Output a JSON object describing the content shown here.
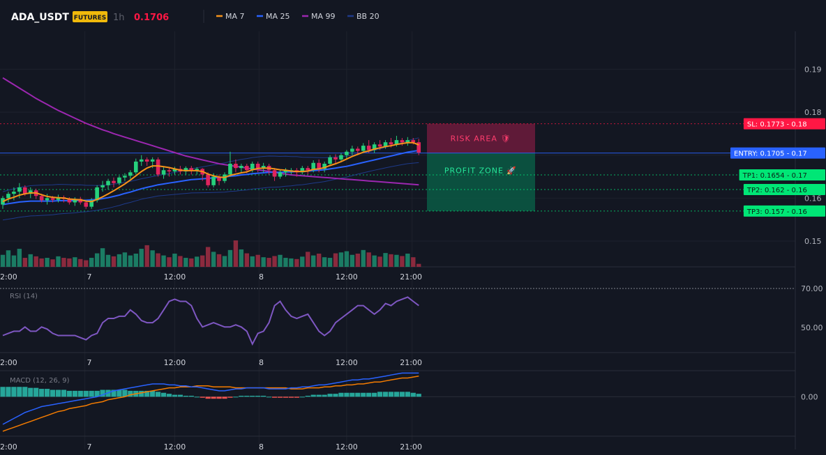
{
  "header": {
    "symbol": "ADA_USDT",
    "badge": "FUTURES",
    "interval": "1h",
    "price": "0.1706",
    "indicators": [
      {
        "label": "MA 7",
        "color": "#f7931a"
      },
      {
        "label": "MA 25",
        "color": "#2962ff"
      },
      {
        "label": "MA 99",
        "color": "#9c27b0"
      },
      {
        "label": "BB 20",
        "color": "#1e3a8a"
      }
    ]
  },
  "colors": {
    "up": "#26d07c",
    "down": "#e0245e",
    "vol_up": "#1b7c64",
    "vol_down": "#8b2a3e",
    "ma7": "#f7931a",
    "ma25": "#2962ff",
    "ma99": "#9c27b0",
    "bb": "#1e3a8a",
    "rsi": "#7e57c2",
    "macd": "#2962ff",
    "signal": "#f57c00",
    "sl": "#ff1744",
    "entry": "#2962ff",
    "tp": "#00e676"
  },
  "zones": {
    "risk_label": "RISK AREA 🛡",
    "profit_label": "PROFIT ZONE 🚀"
  },
  "levels": [
    {
      "key": "sl",
      "label": "SL: 0.1773",
      "value": 0.1773,
      "axis": "0.18"
    },
    {
      "key": "entry",
      "label": "ENTRY: 0.1705",
      "value": 0.1705,
      "axis": "0.17"
    },
    {
      "key": "tp1",
      "label": "TP1: 0.1654",
      "value": 0.1654,
      "axis": "0.17"
    },
    {
      "key": "tp2",
      "label": "TP2: 0.162",
      "value": 0.162,
      "axis": "0.16"
    },
    {
      "key": "tp3",
      "label": "TP3: 0.157",
      "value": 0.157,
      "axis": "0.16"
    }
  ],
  "x_ticks": [
    "2:00",
    "7",
    "12:00",
    "8",
    "12:00",
    "21:00"
  ],
  "chart_data": [
    {
      "type": "candlestick",
      "title": "ADA_USDT 1h",
      "y_ticks": [
        "0.19",
        "0.18",
        "0.17",
        "0.16",
        "0.15"
      ],
      "ylim": [
        0.144,
        0.198
      ],
      "candles": [
        [
          0.1585,
          0.16,
          0.1575,
          0.1605
        ],
        [
          0.16,
          0.161,
          0.159,
          0.1615
        ],
        [
          0.161,
          0.1615,
          0.1595,
          0.1625
        ],
        [
          0.1615,
          0.1625,
          0.16,
          0.1635
        ],
        [
          0.1625,
          0.161,
          0.1605,
          0.163
        ],
        [
          0.161,
          0.1618,
          0.16,
          0.1625
        ],
        [
          0.1618,
          0.1605,
          0.1598,
          0.1622
        ],
        [
          0.1605,
          0.1595,
          0.159,
          0.161
        ],
        [
          0.1595,
          0.16,
          0.1585,
          0.161
        ],
        [
          0.16,
          0.1596,
          0.159,
          0.1605
        ],
        [
          0.1596,
          0.1602,
          0.159,
          0.1608
        ],
        [
          0.1602,
          0.1598,
          0.159,
          0.1606
        ],
        [
          0.1598,
          0.159,
          0.1585,
          0.1602
        ],
        [
          0.159,
          0.1598,
          0.1582,
          0.1602
        ],
        [
          0.1598,
          0.159,
          0.1585,
          0.1603
        ],
        [
          0.159,
          0.158,
          0.1575,
          0.1595
        ],
        [
          0.158,
          0.1595,
          0.1575,
          0.16
        ],
        [
          0.1595,
          0.1625,
          0.159,
          0.163
        ],
        [
          0.1625,
          0.163,
          0.1615,
          0.164
        ],
        [
          0.163,
          0.164,
          0.162,
          0.1645
        ],
        [
          0.164,
          0.1635,
          0.1625,
          0.1648
        ],
        [
          0.1635,
          0.1648,
          0.163,
          0.1652
        ],
        [
          0.1648,
          0.1652,
          0.164,
          0.1658
        ],
        [
          0.1652,
          0.166,
          0.1645,
          0.1665
        ],
        [
          0.166,
          0.1685,
          0.1655,
          0.1692
        ],
        [
          0.1685,
          0.169,
          0.1675,
          0.17
        ],
        [
          0.169,
          0.1685,
          0.1675,
          0.1695
        ],
        [
          0.1685,
          0.169,
          0.167,
          0.1695
        ],
        [
          0.169,
          0.1655,
          0.165,
          0.1695
        ],
        [
          0.1655,
          0.1665,
          0.1645,
          0.1672
        ],
        [
          0.1665,
          0.1662,
          0.165,
          0.167
        ],
        [
          0.1662,
          0.1668,
          0.1655,
          0.1673
        ],
        [
          0.1668,
          0.1662,
          0.1655,
          0.1675
        ],
        [
          0.1662,
          0.167,
          0.1655,
          0.1674
        ],
        [
          0.167,
          0.1665,
          0.1655,
          0.1675
        ],
        [
          0.1665,
          0.1668,
          0.1655,
          0.1672
        ],
        [
          0.1668,
          0.1655,
          0.164,
          0.167
        ],
        [
          0.1655,
          0.163,
          0.1625,
          0.166
        ],
        [
          0.163,
          0.165,
          0.1625,
          0.1658
        ],
        [
          0.165,
          0.164,
          0.163,
          0.1655
        ],
        [
          0.164,
          0.1655,
          0.1635,
          0.166
        ],
        [
          0.1655,
          0.168,
          0.165,
          0.1708
        ],
        [
          0.168,
          0.167,
          0.166,
          0.169
        ],
        [
          0.167,
          0.1675,
          0.166,
          0.168
        ],
        [
          0.1675,
          0.1665,
          0.1658,
          0.168
        ],
        [
          0.1665,
          0.168,
          0.166,
          0.1685
        ],
        [
          0.168,
          0.167,
          0.166,
          0.1685
        ],
        [
          0.167,
          0.1675,
          0.166,
          0.1682
        ],
        [
          0.1675,
          0.1665,
          0.1655,
          0.168
        ],
        [
          0.1665,
          0.165,
          0.164,
          0.167
        ],
        [
          0.165,
          0.166,
          0.1645,
          0.1665
        ],
        [
          0.166,
          0.1665,
          0.165,
          0.167
        ],
        [
          0.1665,
          0.1665,
          0.1655,
          0.167
        ],
        [
          0.1665,
          0.166,
          0.165,
          0.167
        ],
        [
          0.166,
          0.167,
          0.1655,
          0.1675
        ],
        [
          0.167,
          0.1665,
          0.1655,
          0.1675
        ],
        [
          0.1665,
          0.1682,
          0.166,
          0.1688
        ],
        [
          0.1682,
          0.1668,
          0.166,
          0.169
        ],
        [
          0.1668,
          0.168,
          0.166,
          0.1685
        ],
        [
          0.168,
          0.1695,
          0.1675,
          0.17
        ],
        [
          0.1695,
          0.169,
          0.168,
          0.1702
        ],
        [
          0.169,
          0.17,
          0.1685,
          0.1705
        ],
        [
          0.17,
          0.1708,
          0.1692,
          0.1712
        ],
        [
          0.1708,
          0.1715,
          0.17,
          0.1722
        ],
        [
          0.1715,
          0.171,
          0.17,
          0.172
        ],
        [
          0.171,
          0.1722,
          0.1705,
          0.1728
        ],
        [
          0.1722,
          0.1712,
          0.1705,
          0.1735
        ],
        [
          0.1712,
          0.1725,
          0.1705,
          0.173
        ],
        [
          0.1725,
          0.172,
          0.1712,
          0.1735
        ],
        [
          0.172,
          0.173,
          0.1715,
          0.1735
        ],
        [
          0.173,
          0.1725,
          0.1718,
          0.174
        ],
        [
          0.1725,
          0.1735,
          0.172,
          0.1745
        ],
        [
          0.1735,
          0.173,
          0.1722,
          0.174
        ],
        [
          0.173,
          0.1735,
          0.1722,
          0.1742
        ],
        [
          0.1735,
          0.173,
          0.1725,
          0.174
        ],
        [
          0.173,
          0.1706,
          0.17,
          0.1738
        ]
      ],
      "ma7": [
        0.1592,
        0.1598,
        0.1602,
        0.1607,
        0.161,
        0.1612,
        0.1612,
        0.1608,
        0.1604,
        0.1602,
        0.1601,
        0.16,
        0.1598,
        0.1597,
        0.1596,
        0.1593,
        0.1592,
        0.1597,
        0.1603,
        0.161,
        0.1617,
        0.1625,
        0.1633,
        0.1642,
        0.1652,
        0.1662,
        0.167,
        0.1675,
        0.1675,
        0.1673,
        0.1671,
        0.1668,
        0.1665,
        0.1664,
        0.1664,
        0.1664,
        0.1662,
        0.1656,
        0.1652,
        0.1649,
        0.1648,
        0.1653,
        0.1656,
        0.1659,
        0.1661,
        0.1666,
        0.1669,
        0.167,
        0.167,
        0.1668,
        0.1666,
        0.1665,
        0.1663,
        0.1662,
        0.1662,
        0.1663,
        0.1667,
        0.1668,
        0.1671,
        0.1676,
        0.168,
        0.1685,
        0.1691,
        0.1697,
        0.1702,
        0.1707,
        0.171,
        0.1714,
        0.1717,
        0.172,
        0.1722,
        0.1725,
        0.1727,
        0.1729,
        0.1729,
        0.1724
      ],
      "ma25": [
        0.1585,
        0.1587,
        0.1589,
        0.1591,
        0.1592,
        0.1593,
        0.1593,
        0.1593,
        0.1593,
        0.1593,
        0.1594,
        0.1594,
        0.1594,
        0.1594,
        0.1595,
        0.1595,
        0.1596,
        0.1597,
        0.1599,
        0.1601,
        0.1604,
        0.1607,
        0.1611,
        0.1614,
        0.1618,
        0.1622,
        0.1625,
        0.1628,
        0.1631,
        0.1633,
        0.1635,
        0.1637,
        0.1639,
        0.1641,
        0.1643,
        0.1644,
        0.1645,
        0.1646,
        0.1647,
        0.1648,
        0.1649,
        0.1651,
        0.1652,
        0.1654,
        0.1655,
        0.1657,
        0.1658,
        0.1659,
        0.166,
        0.166,
        0.166,
        0.1661,
        0.1661,
        0.1662,
        0.1662,
        0.1663,
        0.1664,
        0.1665,
        0.1666,
        0.1668,
        0.167,
        0.1672,
        0.1674,
        0.1677,
        0.168,
        0.1683,
        0.1686,
        0.1689,
        0.1692,
        0.1695,
        0.1698,
        0.1701,
        0.1704,
        0.1707,
        0.1709,
        0.1711
      ],
      "ma99": [
        0.188,
        0.1872,
        0.1864,
        0.1856,
        0.1848,
        0.184,
        0.1832,
        0.1825,
        0.1818,
        0.1811,
        0.1804,
        0.1798,
        0.1792,
        0.1786,
        0.178,
        0.1774,
        0.1769,
        0.1764,
        0.1759,
        0.1755,
        0.175,
        0.1746,
        0.1742,
        0.1738,
        0.1734,
        0.173,
        0.1726,
        0.1722,
        0.1718,
        0.1714,
        0.171,
        0.1706,
        0.1702,
        0.1698,
        0.1695,
        0.1692,
        0.1689,
        0.1686,
        0.1683,
        0.168,
        0.1678,
        0.1676,
        0.1674,
        0.1672,
        0.167,
        0.1668,
        0.1666,
        0.1664,
        0.1662,
        0.166,
        0.1658,
        0.1656,
        0.1654,
        0.1653,
        0.1652,
        0.1651,
        0.165,
        0.1649,
        0.1648,
        0.1647,
        0.1646,
        0.1645,
        0.1644,
        0.1643,
        0.1642,
        0.1641,
        0.164,
        0.1639,
        0.1638,
        0.1637,
        0.1636,
        0.1635,
        0.1634,
        0.1633,
        0.1632,
        0.1631
      ],
      "volume": [
        40,
        55,
        38,
        60,
        30,
        42,
        35,
        28,
        30,
        25,
        35,
        30,
        28,
        32,
        26,
        22,
        30,
        45,
        62,
        40,
        35,
        42,
        48,
        38,
        44,
        60,
        72,
        55,
        45,
        38,
        32,
        44,
        36,
        30,
        28,
        34,
        38,
        66,
        50,
        42,
        36,
        56,
        88,
        58,
        45,
        35,
        40,
        32,
        30,
        36,
        40,
        30,
        28,
        26,
        34,
        50,
        38,
        44,
        32,
        30,
        45,
        48,
        52,
        40,
        44,
        56,
        48,
        38,
        34,
        46,
        42,
        40,
        36,
        44,
        32,
        10
      ]
    },
    {
      "type": "line",
      "title": "RSI (14)",
      "y_ticks": [
        "70.00",
        "50.00"
      ],
      "ylim": [
        40,
        72
      ],
      "values": [
        48,
        49,
        50,
        50,
        52,
        50,
        50,
        52,
        51,
        49,
        48,
        48,
        48,
        48,
        47,
        46,
        48,
        49,
        54,
        56,
        56,
        57,
        57,
        60,
        58,
        55,
        54,
        54,
        56,
        60,
        64,
        65,
        64,
        64,
        62,
        56,
        52,
        53,
        54,
        53,
        52,
        52,
        53,
        52,
        50,
        44,
        49,
        50,
        54,
        62,
        64,
        60,
        57,
        56,
        57,
        58,
        54,
        50,
        48,
        50,
        54,
        56,
        58,
        60,
        62,
        62,
        60,
        58,
        60,
        63,
        62,
        64,
        65,
        66,
        64,
        62
      ]
    },
    {
      "type": "bar",
      "title": "MACD (12, 26, 9)",
      "y_ticks": [
        "0.00"
      ],
      "ylim": [
        -0.004,
        0.0025
      ],
      "macd": [
        -0.0028,
        -0.0025,
        -0.0022,
        -0.0019,
        -0.0016,
        -0.0014,
        -0.0012,
        -0.001,
        -0.0009,
        -0.0008,
        -0.0007,
        -0.0006,
        -0.0005,
        -0.0004,
        -0.0003,
        -0.0002,
        -0.0001,
        0.0,
        0.0002,
        0.0004,
        0.0006,
        0.0007,
        0.0008,
        0.0009,
        0.001,
        0.0011,
        0.0012,
        0.0013,
        0.0013,
        0.0013,
        0.0012,
        0.0012,
        0.0011,
        0.0011,
        0.001,
        0.001,
        0.0009,
        0.0008,
        0.0007,
        0.0006,
        0.0006,
        0.0007,
        0.0008,
        0.0008,
        0.0009,
        0.0009,
        0.0009,
        0.0009,
        0.0008,
        0.0008,
        0.0008,
        0.0008,
        0.0009,
        0.0009,
        0.001,
        0.001,
        0.0011,
        0.0012,
        0.0012,
        0.0013,
        0.0014,
        0.0015,
        0.0016,
        0.0017,
        0.0017,
        0.0018,
        0.0018,
        0.0019,
        0.002,
        0.0021,
        0.0022,
        0.0023,
        0.0024,
        0.0024,
        0.0024,
        0.0024
      ],
      "signal": [
        -0.0035,
        -0.0033,
        -0.0031,
        -0.0029,
        -0.0027,
        -0.0025,
        -0.0023,
        -0.0021,
        -0.0019,
        -0.0017,
        -0.0015,
        -0.0014,
        -0.0012,
        -0.0011,
        -0.001,
        -0.0009,
        -0.0007,
        -0.0006,
        -0.0005,
        -0.0003,
        -0.0002,
        -0.0001,
        0.0,
        0.0002,
        0.0003,
        0.0004,
        0.0005,
        0.0006,
        0.0007,
        0.0008,
        0.0009,
        0.0009,
        0.001,
        0.001,
        0.001,
        0.0011,
        0.0011,
        0.0011,
        0.001,
        0.001,
        0.001,
        0.001,
        0.0009,
        0.0009,
        0.0009,
        0.0009,
        0.0009,
        0.0009,
        0.0009,
        0.0009,
        0.0009,
        0.0009,
        0.0008,
        0.0008,
        0.0008,
        0.0009,
        0.0009,
        0.0009,
        0.001,
        0.001,
        0.0011,
        0.0011,
        0.0012,
        0.0012,
        0.0013,
        0.0013,
        0.0014,
        0.0015,
        0.0015,
        0.0016,
        0.0017,
        0.0018,
        0.0019,
        0.0019,
        0.002,
        0.0021
      ],
      "hist": [
        0.001,
        0.001,
        0.001,
        0.001,
        0.001,
        0.0009,
        0.0009,
        0.0008,
        0.0008,
        0.0007,
        0.0007,
        0.0007,
        0.0006,
        0.0006,
        0.0006,
        0.0006,
        0.0006,
        0.0006,
        0.0007,
        0.0007,
        0.0007,
        0.0007,
        0.0007,
        0.0006,
        0.0006,
        0.0006,
        0.0006,
        0.0006,
        0.0005,
        0.0004,
        0.0003,
        0.0002,
        0.0002,
        0.0001,
        0.0001,
        0.0,
        -0.0001,
        -0.0002,
        -0.0002,
        -0.0002,
        -0.0002,
        -0.0001,
        0.0,
        0.0001,
        0.0001,
        0.0001,
        0.0001,
        0.0001,
        0.0,
        -0.0001,
        -0.0001,
        -0.0001,
        -0.0001,
        -0.0001,
        0.0,
        0.0001,
        0.0002,
        0.0002,
        0.0002,
        0.0003,
        0.0003,
        0.0004,
        0.0004,
        0.0004,
        0.0004,
        0.0004,
        0.0004,
        0.0004,
        0.0005,
        0.0005,
        0.0005,
        0.0005,
        0.0005,
        0.0005,
        0.0004,
        0.0003
      ]
    }
  ]
}
